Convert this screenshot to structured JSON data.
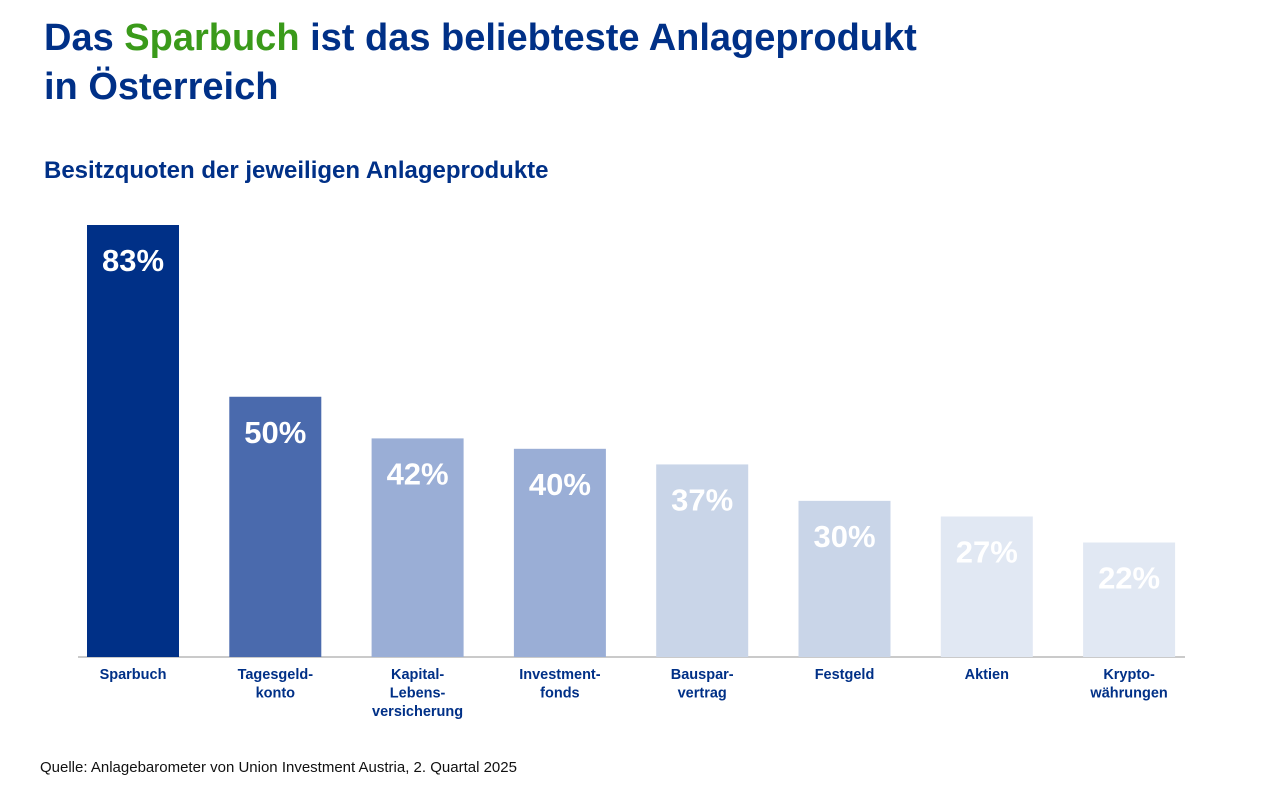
{
  "title": {
    "part1": "Das ",
    "highlight": "Sparbuch",
    "part2": " ist das beliebteste Anlageprodukt",
    "line2": "in Österreich"
  },
  "subtitle": "Besitzquoten der jeweiligen Anlageprodukte",
  "source": "Quelle: Anlagebarometer von Union Investment Austria, 2. Quartal 2025",
  "colors": {
    "title": "#003087",
    "highlight": "#3a9a1a",
    "category_label": "#003087"
  },
  "chart_data": {
    "type": "bar",
    "title": "Besitzquoten der jeweiligen Anlageprodukte",
    "xlabel": "",
    "ylabel": "",
    "ylim": [
      0,
      100
    ],
    "grid": false,
    "categories": [
      [
        "Sparbuch"
      ],
      [
        "Tagesgeld-",
        "konto"
      ],
      [
        "Kapital-",
        "Lebens-",
        "versicherung"
      ],
      [
        "Investment-",
        "fonds"
      ],
      [
        "Bauspar-",
        "vertrag"
      ],
      [
        "Festgeld"
      ],
      [
        "Aktien"
      ],
      [
        "Krypto-",
        "währungen"
      ]
    ],
    "values": [
      83,
      50,
      42,
      40,
      37,
      30,
      27,
      22
    ],
    "value_labels": [
      "83%",
      "50%",
      "42%",
      "40%",
      "37%",
      "30%",
      "27%",
      "22%"
    ],
    "bar_colors": [
      "#003087",
      "#4a6aad",
      "#9aaed6",
      "#9aaed6",
      "#c9d5e8",
      "#c9d5e8",
      "#e1e8f3",
      "#e1e8f3"
    ]
  }
}
